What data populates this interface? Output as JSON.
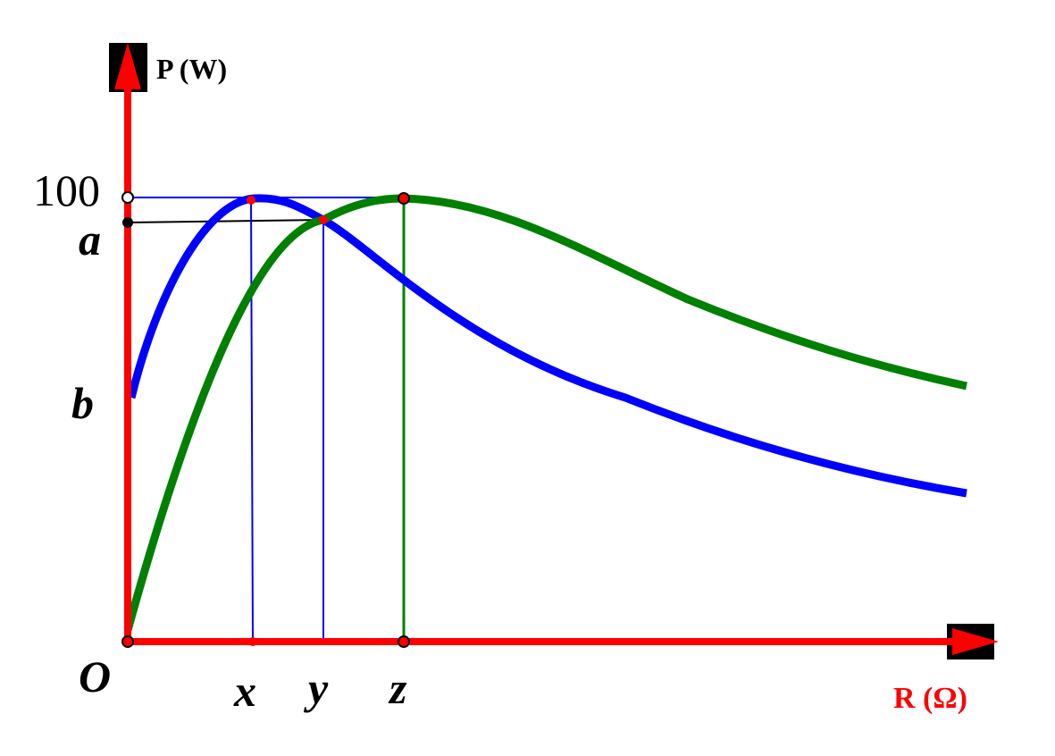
{
  "axes": {
    "y_label": "P (W)",
    "x_label": "R (Ω)"
  },
  "labels": {
    "y_100": "100",
    "a": "a",
    "b": "b",
    "origin": "O",
    "x": "x",
    "y": "y",
    "z": "z"
  }
}
